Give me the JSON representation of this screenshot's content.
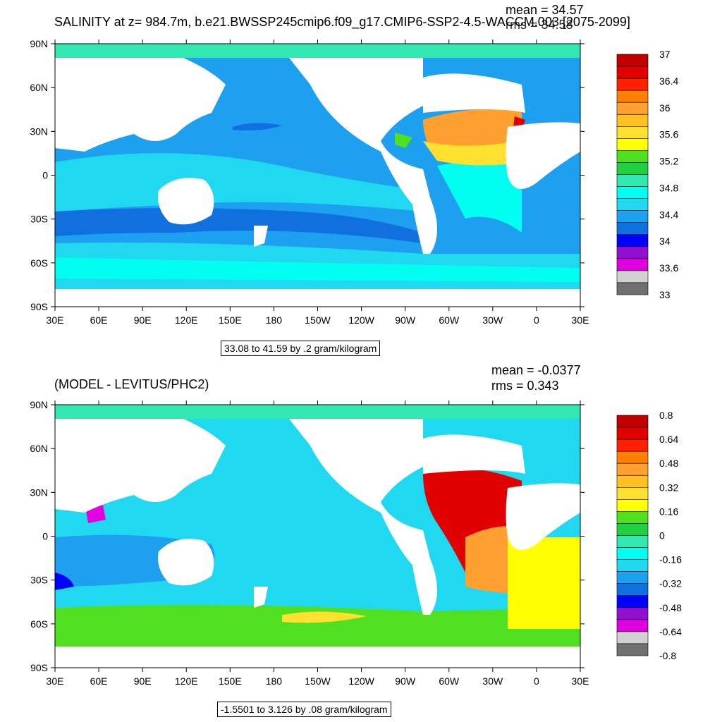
{
  "lat_labels": [
    "90N",
    "60N",
    "30N",
    "0",
    "30S",
    "60S",
    "90S"
  ],
  "lon_labels": [
    "30E",
    "60E",
    "90E",
    "120E",
    "150E",
    "180",
    "150W",
    "120W",
    "90W",
    "60W",
    "30W",
    "0",
    "30E"
  ],
  "ocean_color": "#1ea0f0",
  "top_panel": {
    "title": "SALINITY at z= 984.7m, b.e21.BWSSP245cmip6.f09_g17.CMIP6-SSP2-4.5-WACCM.003 [2075-2099]",
    "mean_text": "mean = 34.57",
    "rms_text": "rms = 34.58",
    "info_text": "33.08 to 41.59 by .2 gram/kilogram",
    "colorbar": {
      "colors": [
        "#c00000",
        "#e00000",
        "#ff2000",
        "#ff8000",
        "#ffa030",
        "#ffc020",
        "#ffe030",
        "#ffff00",
        "#50e020",
        "#20d040",
        "#30e8b0",
        "#00fff0",
        "#20d8f0",
        "#1ea0f0",
        "#1070e0",
        "#0000ff",
        "#9010d0",
        "#e000e0",
        "#d0d0d0",
        "#707070"
      ],
      "labels": [
        "37",
        "36.4",
        "36",
        "35.6",
        "35.2",
        "34.8",
        "34.4",
        "34",
        "33.6",
        "33"
      ]
    }
  },
  "bottom_panel": {
    "title": "(MODEL - LEVITUS/PHC2)",
    "mean_text": "mean = -0.0377",
    "rms_text": "rms = 0.343",
    "info_text": "-1.5501 to 3.126 by .08 gram/kilogram",
    "colorbar": {
      "colors": [
        "#c00000",
        "#e00000",
        "#ff2000",
        "#ff8000",
        "#ffa030",
        "#ffc020",
        "#ffe030",
        "#ffff00",
        "#50e020",
        "#20d040",
        "#30e8b0",
        "#00fff0",
        "#20d8f0",
        "#1ea0f0",
        "#1070e0",
        "#0000ff",
        "#9010d0",
        "#e000e0",
        "#d0d0d0",
        "#707070"
      ],
      "labels": [
        "0.8",
        "0.64",
        "0.48",
        "0.32",
        "0.16",
        "0",
        "-0.16",
        "-0.32",
        "-0.48",
        "-0.64",
        "-0.8"
      ]
    }
  }
}
